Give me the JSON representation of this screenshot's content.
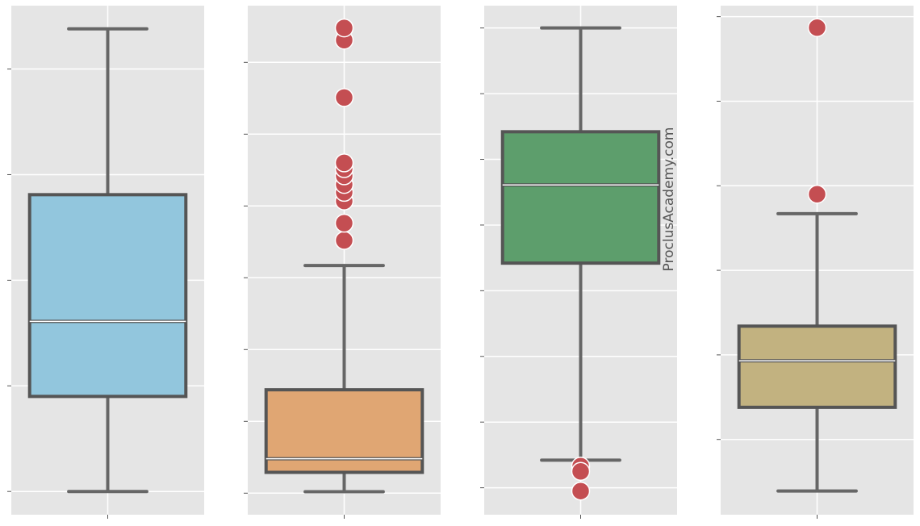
{
  "chart_data": [
    {
      "type": "box",
      "color": "#92c6dd",
      "ylim": [
        -0.22,
        4.6
      ],
      "yticks": [
        0,
        1,
        2,
        3,
        4
      ],
      "grid": true,
      "box": {
        "whislo": 0,
        "q1": 0.9,
        "med": 1.61,
        "q3": 2.81,
        "whishi": 4.38,
        "fliers": []
      }
    },
    {
      "type": "box",
      "color": "#e0a673",
      "ylim": [
        -0.3,
        6.79
      ],
      "yticks": [
        0,
        1,
        2,
        3,
        4,
        5,
        6
      ],
      "grid": true,
      "box": {
        "whislo": 0.02,
        "q1": 0.29,
        "med": 0.48,
        "q3": 1.44,
        "whishi": 3.17,
        "fliers": [
          3.52,
          3.76,
          4.07,
          4.19,
          4.3,
          4.42,
          4.52,
          4.6,
          5.51,
          6.31,
          6.48
        ]
      }
    },
    {
      "type": "box",
      "color": "#5d9e6c",
      "ylim": [
        -0.41,
        7.34
      ],
      "yticks": [
        0,
        1,
        2,
        3,
        4,
        5,
        6,
        7
      ],
      "grid": true,
      "annotation": "ProclusAcademy.com",
      "box": {
        "whislo": 0.42,
        "q1": 3.42,
        "med": 4.61,
        "q3": 5.42,
        "whishi": 7,
        "fliers": [
          0.33,
          0.25,
          -0.05
        ]
      }
    },
    {
      "type": "box",
      "color": "#c2b280",
      "ylim": [
        -0.89,
        5.13
      ],
      "yticks": [
        0,
        1,
        2,
        3,
        4,
        5
      ],
      "grid": true,
      "box": {
        "whislo": -0.61,
        "q1": 0.38,
        "med": 0.93,
        "q3": 1.34,
        "whishi": 2.67,
        "fliers": [
          2.9,
          4.87
        ]
      }
    }
  ]
}
